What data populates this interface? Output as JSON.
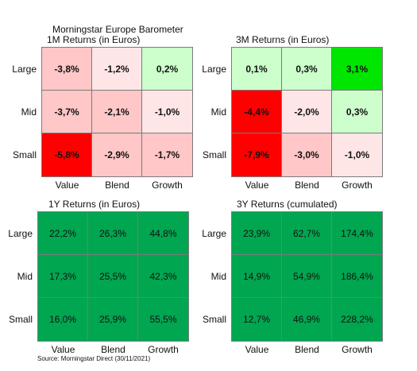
{
  "header": {
    "title": "Morningstar Europe Barometer"
  },
  "row_labels": [
    "Large",
    "Mid",
    "Small"
  ],
  "col_labels": [
    "Value",
    "Blend",
    "Growth"
  ],
  "source": "Source: Morningstar Direct (30/11/2021)",
  "colors": {
    "strong_red": "#ff0000",
    "light_red": "#ffc7c7",
    "very_light_red": "#ffe6e6",
    "light_green": "#ccffcc",
    "bright_green": "#00e600",
    "dark_green": "#00a650"
  },
  "chart_data": [
    {
      "type": "heatmap",
      "title": "1M Returns (in Euros)",
      "rows": [
        "Large",
        "Mid",
        "Small"
      ],
      "columns": [
        "Value",
        "Blend",
        "Growth"
      ],
      "labels": [
        [
          "-3,8%",
          "-1,2%",
          "0,2%"
        ],
        [
          "-3,7%",
          "-2,1%",
          "-1,0%"
        ],
        [
          "-5,8%",
          "-2,9%",
          "-1,7%"
        ]
      ],
      "values": [
        [
          -3.8,
          -1.2,
          0.2
        ],
        [
          -3.7,
          -2.1,
          -1.0
        ],
        [
          -5.8,
          -2.9,
          -1.7
        ]
      ],
      "colors": [
        [
          "#ffc7c7",
          "#ffe6e6",
          "#ccffcc"
        ],
        [
          "#ffc7c7",
          "#ffc7c7",
          "#ffe6e6"
        ],
        [
          "#ff0000",
          "#ffc7c7",
          "#ffc7c7"
        ]
      ]
    },
    {
      "type": "heatmap",
      "title": "3M Returns (in Euros)",
      "rows": [
        "Large",
        "Mid",
        "Small"
      ],
      "columns": [
        "Value",
        "Blend",
        "Growth"
      ],
      "labels": [
        [
          "0,1%",
          "0,3%",
          "3,1%"
        ],
        [
          "-4,4%",
          "-2,0%",
          "0,3%"
        ],
        [
          "-7,9%",
          "-3,0%",
          "-1,0%"
        ]
      ],
      "values": [
        [
          0.1,
          0.3,
          3.1
        ],
        [
          -4.4,
          -2.0,
          0.3
        ],
        [
          -7.9,
          -3.0,
          -1.0
        ]
      ],
      "colors": [
        [
          "#ccffcc",
          "#ccffcc",
          "#00e600"
        ],
        [
          "#ff0000",
          "#ffe6e6",
          "#ccffcc"
        ],
        [
          "#ff0000",
          "#ffc7c7",
          "#ffe6e6"
        ]
      ]
    },
    {
      "type": "heatmap",
      "title": "1Y Returns (in Euros)",
      "rows": [
        "Large",
        "Mid",
        "Small"
      ],
      "columns": [
        "Value",
        "Blend",
        "Growth"
      ],
      "labels": [
        [
          "22,2%",
          "26,3%",
          "44,8%"
        ],
        [
          "17,3%",
          "25,5%",
          "42,3%"
        ],
        [
          "16,0%",
          "25,9%",
          "55,5%"
        ]
      ],
      "values": [
        [
          22.2,
          26.3,
          44.8
        ],
        [
          17.3,
          25.5,
          42.3
        ],
        [
          16.0,
          25.9,
          55.5
        ]
      ],
      "colors": [
        [
          "#00a650",
          "#00a650",
          "#00a650"
        ],
        [
          "#00a650",
          "#00a650",
          "#00a650"
        ],
        [
          "#00a650",
          "#00a650",
          "#00a650"
        ]
      ]
    },
    {
      "type": "heatmap",
      "title": "3Y Returns (cumulated)",
      "rows": [
        "Large",
        "Mid",
        "Small"
      ],
      "columns": [
        "Value",
        "Blend",
        "Growth"
      ],
      "labels": [
        [
          "23,9%",
          "62,7%",
          "174,4%"
        ],
        [
          "14,9%",
          "54,9%",
          "186,4%"
        ],
        [
          "12,7%",
          "46,9%",
          "228,2%"
        ]
      ],
      "values": [
        [
          23.9,
          62.7,
          174.4
        ],
        [
          14.9,
          54.9,
          186.4
        ],
        [
          12.7,
          46.9,
          228.2
        ]
      ],
      "colors": [
        [
          "#00a650",
          "#00a650",
          "#00a650"
        ],
        [
          "#00a650",
          "#00a650",
          "#00a650"
        ],
        [
          "#00a650",
          "#00a650",
          "#00a650"
        ]
      ]
    }
  ]
}
